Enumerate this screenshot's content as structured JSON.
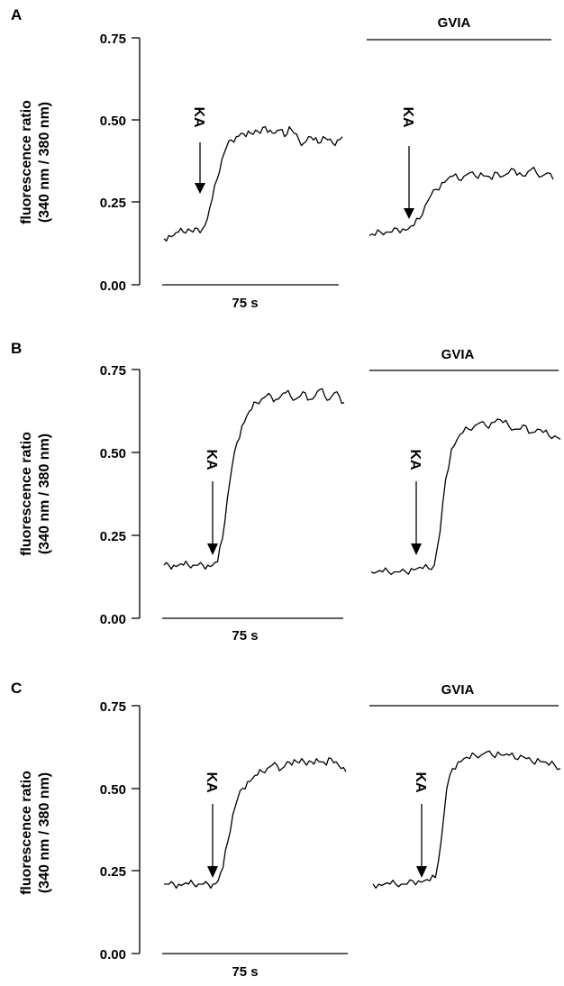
{
  "chart_data": [
    {
      "type": "line",
      "panel": "A",
      "ylabel": [
        "fluorescence ratio",
        "(340 nm / 380 nm)"
      ],
      "ylim": [
        0,
        0.75
      ],
      "yticks": [
        "0.00",
        "0.25",
        "0.50",
        "0.75"
      ],
      "scale_bar": "75 s",
      "drug_bar": "GVIA",
      "stimulus": "KA",
      "series": [
        {
          "values": [
            0.14,
            0.15,
            0.15,
            0.16,
            0.16,
            0.17,
            0.16,
            0.17,
            0.17,
            0.2,
            0.26,
            0.32,
            0.38,
            0.42,
            0.44,
            0.45,
            0.46,
            0.45,
            0.46,
            0.47,
            0.46,
            0.48,
            0.47,
            0.46,
            0.47,
            0.45,
            0.48,
            0.46,
            0.44,
            0.43,
            0.45,
            0.44,
            0.43,
            0.45,
            0.44,
            0.43,
            0.44,
            0.45
          ]
        },
        {
          "values": [
            0.15,
            0.15,
            0.16,
            0.16,
            0.16,
            0.17,
            0.17,
            0.17,
            0.18,
            0.2,
            0.24,
            0.27,
            0.29,
            0.31,
            0.32,
            0.33,
            0.32,
            0.33,
            0.34,
            0.33,
            0.34,
            0.33,
            0.32,
            0.34,
            0.33,
            0.34,
            0.35,
            0.34,
            0.33,
            0.35,
            0.34,
            0.33,
            0.34,
            0.32
          ]
        }
      ]
    },
    {
      "type": "line",
      "panel": "B",
      "ylabel": [
        "fluorescence ratio",
        "(340 nm / 380 nm)"
      ],
      "ylim": [
        0,
        0.75
      ],
      "yticks": [
        "0.00",
        "0.25",
        "0.50",
        "0.75"
      ],
      "scale_bar": "75 s",
      "drug_bar": "GVIA",
      "stimulus": "KA",
      "series": [
        {
          "values": [
            0.16,
            0.16,
            0.16,
            0.16,
            0.16,
            0.16,
            0.16,
            0.16,
            0.16,
            0.16,
            0.16,
            0.17,
            0.24,
            0.36,
            0.46,
            0.53,
            0.58,
            0.61,
            0.63,
            0.65,
            0.66,
            0.67,
            0.67,
            0.66,
            0.67,
            0.68,
            0.67,
            0.66,
            0.67,
            0.68,
            0.66,
            0.67,
            0.69,
            0.67,
            0.66,
            0.68,
            0.67,
            0.65
          ]
        },
        {
          "values": [
            0.14,
            0.14,
            0.14,
            0.14,
            0.14,
            0.14,
            0.14,
            0.15,
            0.15,
            0.15,
            0.15,
            0.16,
            0.26,
            0.42,
            0.51,
            0.54,
            0.56,
            0.57,
            0.58,
            0.59,
            0.58,
            0.59,
            0.6,
            0.59,
            0.58,
            0.57,
            0.57,
            0.58,
            0.56,
            0.57,
            0.56,
            0.55,
            0.55,
            0.54
          ]
        }
      ]
    },
    {
      "type": "line",
      "panel": "C",
      "ylabel": [
        "fluorescence ratio",
        "(340 nm / 380 nm)"
      ],
      "ylim": [
        0,
        0.75
      ],
      "yticks": [
        "0.00",
        "0.25",
        "0.50",
        "0.75"
      ],
      "scale_bar": "75 s",
      "drug_bar": "GVIA",
      "stimulus": "KA",
      "series": [
        {
          "values": [
            0.21,
            0.21,
            0.21,
            0.21,
            0.21,
            0.21,
            0.21,
            0.21,
            0.21,
            0.21,
            0.21,
            0.22,
            0.26,
            0.34,
            0.42,
            0.47,
            0.5,
            0.52,
            0.53,
            0.54,
            0.55,
            0.56,
            0.57,
            0.57,
            0.56,
            0.58,
            0.57,
            0.58,
            0.59,
            0.57,
            0.58,
            0.59,
            0.58,
            0.57,
            0.59,
            0.58,
            0.56,
            0.55
          ]
        },
        {
          "values": [
            0.21,
            0.21,
            0.21,
            0.21,
            0.21,
            0.21,
            0.21,
            0.22,
            0.22,
            0.22,
            0.22,
            0.23,
            0.34,
            0.5,
            0.56,
            0.58,
            0.59,
            0.59,
            0.6,
            0.6,
            0.61,
            0.6,
            0.61,
            0.6,
            0.6,
            0.59,
            0.6,
            0.59,
            0.58,
            0.59,
            0.58,
            0.57,
            0.57,
            0.56
          ]
        }
      ]
    }
  ]
}
